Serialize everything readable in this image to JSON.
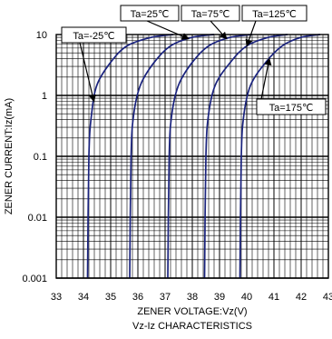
{
  "chart_data": {
    "type": "line",
    "title": "Vz-Iz CHARACTERISTICS",
    "xlabel": "ZENER VOLTAGE:Vz(V)",
    "ylabel": "ZENER CURRENT:Iz(mA)",
    "xlim": [
      33,
      43
    ],
    "ylim": [
      0.001,
      10
    ],
    "yscale": "log",
    "grid": "on",
    "x_ticks": [
      "33",
      "34",
      "35",
      "36",
      "37",
      "38",
      "39",
      "40",
      "41",
      "42",
      "43"
    ],
    "y_ticks": [
      "0.001",
      "0.01",
      "0.1",
      "1",
      "10"
    ],
    "series_color": "#1a237e",
    "series": [
      {
        "name": "Ta=-25℃",
        "x": [
          34.15,
          34.2,
          34.3,
          34.5,
          35.0,
          35.6,
          36.5,
          37.3
        ],
        "y": [
          0.001,
          0.1,
          0.5,
          1.5,
          3.5,
          6.5,
          9.0,
          10
        ]
      },
      {
        "name": "Ta=25℃",
        "x": [
          35.7,
          35.75,
          35.85,
          36.1,
          36.6,
          37.2,
          38.0,
          38.8
        ],
        "y": [
          0.001,
          0.1,
          0.5,
          1.5,
          3.5,
          6.5,
          9.0,
          10
        ]
      },
      {
        "name": "Ta=75℃",
        "x": [
          37.1,
          37.15,
          37.25,
          37.5,
          38.0,
          38.6,
          39.4,
          40.2
        ],
        "y": [
          0.001,
          0.1,
          0.5,
          1.5,
          3.5,
          6.5,
          9.0,
          10
        ]
      },
      {
        "name": "Ta=125℃",
        "x": [
          38.45,
          38.5,
          38.6,
          38.85,
          39.4,
          40.0,
          40.8,
          41.5
        ],
        "y": [
          0.001,
          0.1,
          0.5,
          1.5,
          3.5,
          6.5,
          9.0,
          10
        ]
      },
      {
        "name": "Ta=175℃",
        "x": [
          39.75,
          39.8,
          39.9,
          40.15,
          40.7,
          41.3,
          42.0,
          42.7
        ],
        "y": [
          0.001,
          0.1,
          0.5,
          1.5,
          3.5,
          6.5,
          9.0,
          10
        ]
      }
    ]
  }
}
